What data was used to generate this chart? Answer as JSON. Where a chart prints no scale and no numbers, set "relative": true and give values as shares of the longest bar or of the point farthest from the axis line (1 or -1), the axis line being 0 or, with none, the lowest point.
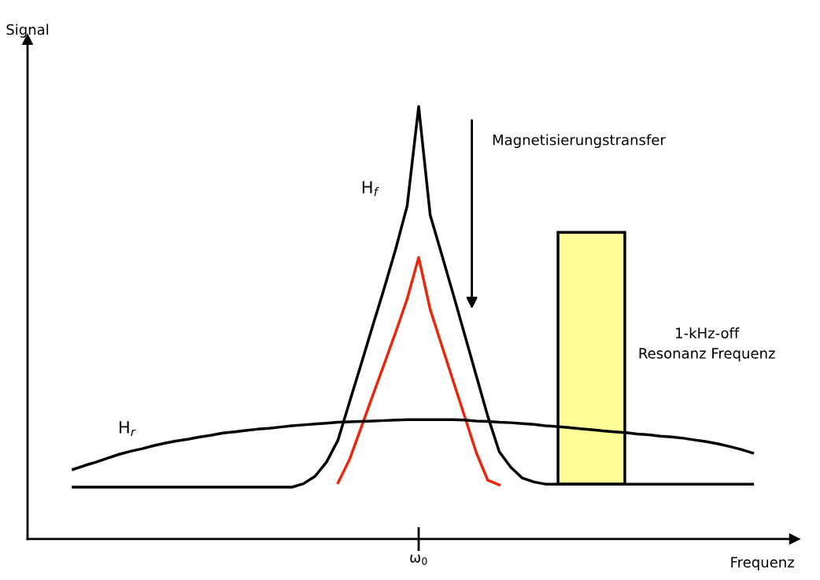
{
  "chart_data": {
    "type": "line",
    "relative": true,
    "xlabel": "Frequenz",
    "marker": "none",
    "line_style": "solid",
    "categories": [
      null,
      null,
      null,
      null,
      null,
      null,
      null,
      null,
      null,
      null,
      null,
      null,
      null,
      null,
      null,
      null,
      null,
      null,
      null,
      null,
      null,
      null,
      null,
      null,
      null,
      null,
      null,
      null,
      null,
      null,
      null,
      null,
      null,
      null,
      null,
      null,
      null,
      null,
      null,
      null,
      null,
      null,
      null,
      null,
      null,
      null,
      null,
      null,
      null,
      null,
      null,
      null,
      null,
      null,
      null,
      null,
      null,
      null,
      null,
      null
    ],
    "series": [
      {
        "name": "H$_{f}$",
        "color": "#000000",
        "values": [
          0.12,
          0.12,
          0.12,
          0.12,
          0.12,
          0.12,
          0.12,
          0.12,
          0.12,
          0.12,
          0.12,
          0.12,
          0.12,
          0.12,
          0.12,
          0.12,
          0.12,
          0.12,
          0.12,
          0.12,
          0.128,
          0.145,
          0.178,
          0.229,
          0.317,
          0.404,
          0.492,
          0.579,
          0.67,
          0.77,
          1.0,
          0.749,
          0.658,
          0.566,
          0.472,
          0.378,
          0.284,
          0.202,
          0.166,
          0.141,
          0.132,
          0.127,
          0.127,
          0.127,
          0.127,
          0.127,
          0.127,
          0.127,
          0.127,
          0.127,
          0.127,
          0.127,
          0.127,
          0.127,
          0.127,
          0.127,
          0.127,
          0.127,
          0.127,
          0.127
        ]
      },
      {
        "color": "#e8270c",
        "values": [
          null,
          null,
          null,
          null,
          null,
          null,
          null,
          null,
          null,
          null,
          null,
          null,
          null,
          null,
          null,
          null,
          null,
          null,
          null,
          null,
          null,
          null,
          null,
          0.13,
          0.184,
          0.257,
          0.331,
          0.404,
          0.478,
          0.555,
          0.651,
          0.531,
          0.448,
          0.365,
          0.283,
          0.2,
          0.136,
          0.125,
          null,
          null,
          null,
          null,
          null,
          null,
          null,
          null,
          null,
          null,
          null,
          null,
          null,
          null,
          null,
          null,
          null,
          null,
          null,
          null,
          null,
          null
        ]
      },
      {
        "name": "H$_{r}$",
        "color": "#000000",
        "values": [
          0.161,
          0.17,
          0.178,
          0.187,
          0.196,
          0.203,
          0.209,
          0.216,
          0.222,
          0.227,
          0.231,
          0.236,
          0.24,
          0.245,
          0.248,
          0.251,
          0.254,
          0.256,
          0.259,
          0.262,
          0.264,
          0.266,
          0.268,
          0.27,
          0.271,
          0.272,
          0.273,
          0.274,
          0.275,
          0.276,
          0.276,
          0.276,
          0.276,
          0.276,
          0.275,
          0.273,
          0.272,
          0.27,
          0.269,
          0.267,
          0.265,
          0.262,
          0.26,
          0.258,
          0.255,
          0.253,
          0.25,
          0.248,
          0.246,
          0.243,
          0.241,
          0.238,
          0.236,
          0.233,
          0.229,
          0.225,
          0.22,
          0.214,
          0.207,
          0.199
        ]
      }
    ],
    "annotations": [
      "Magnetisierungstransfer",
      "1-kHz-off\nResonanz Frequenz",
      "ω$_{0}$",
      "Signal"
    ]
  }
}
